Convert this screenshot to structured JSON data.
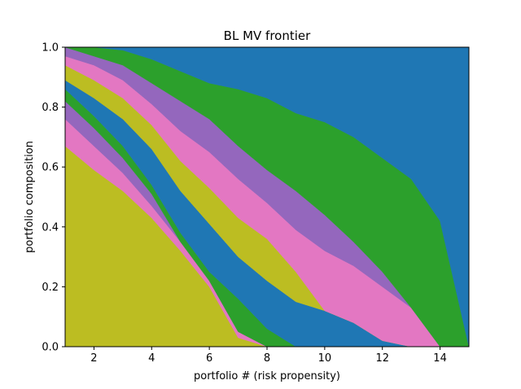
{
  "chart_data": {
    "type": "area",
    "stacked": true,
    "title": "BL MV frontier",
    "xlabel": "portfolio # (risk propensity)",
    "ylabel": "portfolio composition",
    "xlim": [
      1,
      15
    ],
    "ylim": [
      0,
      1.0
    ],
    "x": [
      1,
      2,
      3,
      4,
      5,
      6,
      7,
      8,
      9,
      10,
      11,
      12,
      13,
      14,
      15
    ],
    "xticks": [
      2,
      4,
      6,
      8,
      10,
      12,
      14
    ],
    "xtick_labels": [
      "2",
      "4",
      "6",
      "8",
      "10",
      "12",
      "14"
    ],
    "yticks": [
      0.0,
      0.2,
      0.4,
      0.6,
      0.8,
      1.0
    ],
    "ytick_labels": [
      "0.0",
      "0.2",
      "0.4",
      "0.6",
      "0.8",
      "1.0"
    ],
    "grid": false,
    "series": [
      {
        "color": "#bcbd22",
        "values": [
          0.67,
          0.59,
          0.52,
          0.43,
          0.32,
          0.2,
          0.03,
          0.0,
          0.0,
          0.0,
          0.0,
          0.0,
          0.0,
          0.0,
          0.0
        ]
      },
      {
        "color": "#e377c2",
        "values": [
          0.09,
          0.08,
          0.06,
          0.04,
          0.03,
          0.02,
          0.02,
          0.0,
          0.0,
          0.0,
          0.0,
          0.0,
          0.0,
          0.0,
          0.0
        ]
      },
      {
        "color": "#9467bd",
        "values": [
          0.06,
          0.06,
          0.05,
          0.04,
          0.0,
          0.0,
          0.0,
          0.0,
          0.0,
          0.0,
          0.0,
          0.0,
          0.0,
          0.0,
          0.0
        ]
      },
      {
        "color": "#2ca02c",
        "values": [
          0.04,
          0.04,
          0.04,
          0.03,
          0.03,
          0.03,
          0.11,
          0.06,
          0.0,
          0.0,
          0.0,
          0.0,
          0.0,
          0.0,
          0.0
        ]
      },
      {
        "color": "#1f77b4",
        "values": [
          0.03,
          0.06,
          0.09,
          0.12,
          0.14,
          0.16,
          0.14,
          0.16,
          0.15,
          0.12,
          0.08,
          0.02,
          0.0,
          0.0,
          0.0
        ]
      },
      {
        "color": "#bcbd22",
        "values": [
          0.05,
          0.06,
          0.07,
          0.08,
          0.1,
          0.12,
          0.13,
          0.14,
          0.1,
          0.0,
          0.0,
          0.0,
          0.0,
          0.0,
          0.0
        ]
      },
      {
        "color": "#e377c2",
        "values": [
          0.03,
          0.05,
          0.06,
          0.07,
          0.1,
          0.12,
          0.13,
          0.12,
          0.14,
          0.2,
          0.19,
          0.18,
          0.13,
          0.0,
          0.0
        ]
      },
      {
        "color": "#9467bd",
        "values": [
          0.03,
          0.03,
          0.05,
          0.07,
          0.1,
          0.11,
          0.11,
          0.11,
          0.13,
          0.12,
          0.08,
          0.05,
          0.0,
          0.0,
          0.0
        ]
      },
      {
        "color": "#2ca02c",
        "values": [
          0.0,
          0.03,
          0.05,
          0.08,
          0.1,
          0.12,
          0.19,
          0.24,
          0.26,
          0.31,
          0.35,
          0.38,
          0.43,
          0.42,
          0.0
        ]
      },
      {
        "color": "#1f77b4",
        "values": [
          0.0,
          0.0,
          0.01,
          0.04,
          0.08,
          0.12,
          0.14,
          0.17,
          0.22,
          0.25,
          0.3,
          0.37,
          0.44,
          0.58,
          1.0
        ]
      }
    ]
  }
}
